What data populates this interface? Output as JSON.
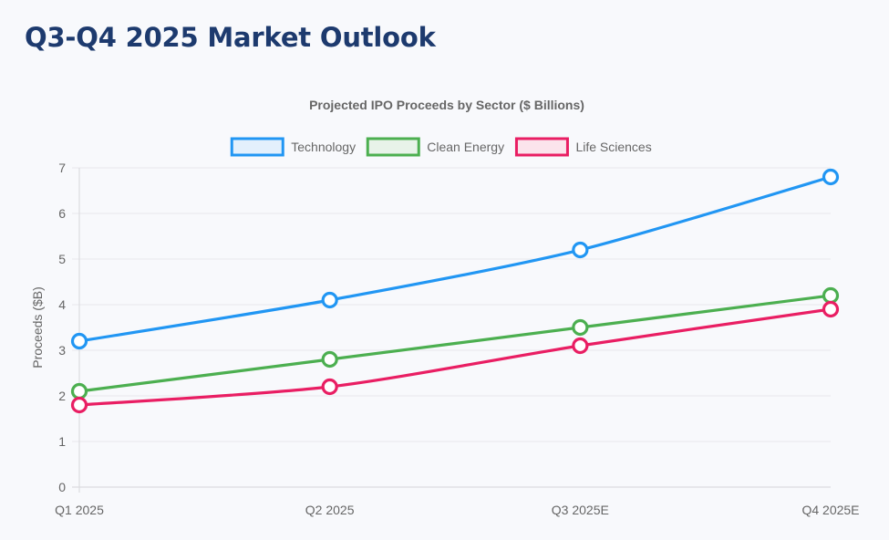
{
  "page": {
    "title": "Q3-Q4 2025 Market Outlook"
  },
  "chart_data": {
    "type": "line",
    "title": "Projected IPO Proceeds by Sector ($ Billions)",
    "xlabel": "",
    "ylabel": "Proceeds ($B)",
    "categories": [
      "Q1 2025",
      "Q2 2025",
      "Q3 2025E",
      "Q4 2025E"
    ],
    "ylim": [
      0,
      7
    ],
    "yticks": [
      0,
      1,
      2,
      3,
      4,
      5,
      6,
      7
    ],
    "grid": "horizontal",
    "legend_position": "top-center",
    "series": [
      {
        "name": "Technology",
        "color": "#2196f3",
        "fill": "#e3f0fc",
        "values": [
          3.2,
          4.1,
          5.2,
          6.8
        ]
      },
      {
        "name": "Clean Energy",
        "color": "#4caf50",
        "fill": "#e8f3e9",
        "values": [
          2.1,
          2.8,
          3.5,
          4.2
        ]
      },
      {
        "name": "Life Sciences",
        "color": "#e91e63",
        "fill": "#fbe4ec",
        "values": [
          1.8,
          2.2,
          3.1,
          3.9
        ]
      }
    ]
  }
}
